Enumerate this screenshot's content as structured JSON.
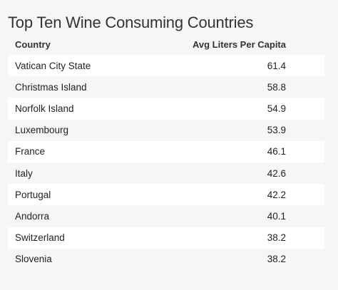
{
  "title": "Top Ten Wine Consuming Countries",
  "table": {
    "headers": {
      "country": "Country",
      "value": "Avg Liters Per Capita"
    },
    "rows": [
      {
        "country": "Vatican City State",
        "value": "61.4"
      },
      {
        "country": "Christmas Island",
        "value": "58.8"
      },
      {
        "country": "Norfolk Island",
        "value": "54.9"
      },
      {
        "country": "Luxembourg",
        "value": "53.9"
      },
      {
        "country": "France",
        "value": "46.1"
      },
      {
        "country": "Italy",
        "value": "42.6"
      },
      {
        "country": "Portugal",
        "value": "42.2"
      },
      {
        "country": "Andorra",
        "value": "40.1"
      },
      {
        "country": "Switzerland",
        "value": "38.2"
      },
      {
        "country": "Slovenia",
        "value": "38.2"
      }
    ]
  },
  "colors": {
    "background": "#f6f6f6",
    "row_stripe": "#ffffff",
    "text": "#222222"
  }
}
